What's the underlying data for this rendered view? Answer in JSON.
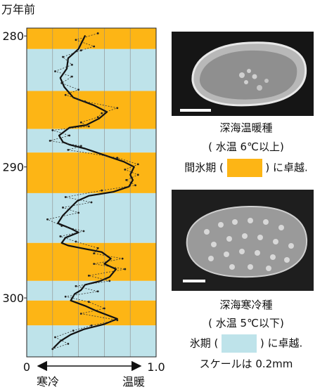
{
  "chart_data": {
    "type": "line",
    "y_axis_title": "万年前",
    "y_ticks": [
      280,
      290,
      300
    ],
    "ylim": [
      279.4,
      304.5
    ],
    "xlim": [
      0,
      1.0
    ],
    "x_tick_labels": [
      "0",
      "1.0"
    ],
    "x_axis_left_label": "寒冷",
    "x_axis_right_label": "温暖",
    "colors": {
      "interglacial": "#FDB515",
      "glacial": "#BEE3EA",
      "smooth_line": "#111111",
      "raw_line": "#333333"
    },
    "bands": [
      {
        "type": "interglacial",
        "from": 279.4,
        "to": 281.0
      },
      {
        "type": "glacial",
        "from": 281.0,
        "to": 284.2
      },
      {
        "type": "interglacial",
        "from": 284.2,
        "to": 287.1
      },
      {
        "type": "glacial",
        "from": 287.1,
        "to": 288.9
      },
      {
        "type": "interglacial",
        "from": 288.9,
        "to": 292.0
      },
      {
        "type": "glacial",
        "from": 292.0,
        "to": 295.8
      },
      {
        "type": "interglacial",
        "from": 295.8,
        "to": 298.7
      },
      {
        "type": "glacial",
        "from": 298.7,
        "to": 300.2
      },
      {
        "type": "interglacial",
        "from": 300.2,
        "to": 302.1
      },
      {
        "type": "glacial",
        "from": 302.1,
        "to": 304.5
      }
    ],
    "series": [
      {
        "style": "smooth",
        "points": [
          [
            0.45,
            280.0
          ],
          [
            0.4,
            281.0
          ],
          [
            0.32,
            281.7
          ],
          [
            0.31,
            282.5
          ],
          [
            0.26,
            283.2
          ],
          [
            0.29,
            283.9
          ],
          [
            0.36,
            284.7
          ],
          [
            0.52,
            285.3
          ],
          [
            0.62,
            285.8
          ],
          [
            0.56,
            286.3
          ],
          [
            0.46,
            286.8
          ],
          [
            0.33,
            287.0
          ],
          [
            0.25,
            287.6
          ],
          [
            0.28,
            288.1
          ],
          [
            0.33,
            288.3
          ],
          [
            0.45,
            288.6
          ],
          [
            0.63,
            289.2
          ],
          [
            0.75,
            289.6
          ],
          [
            0.83,
            290.0
          ],
          [
            0.8,
            290.6
          ],
          [
            0.82,
            291.0
          ],
          [
            0.79,
            291.5
          ],
          [
            0.67,
            291.9
          ],
          [
            0.48,
            292.2
          ],
          [
            0.39,
            292.6
          ],
          [
            0.34,
            293.1
          ],
          [
            0.28,
            293.7
          ],
          [
            0.24,
            294.3
          ],
          [
            0.34,
            294.7
          ],
          [
            0.4,
            295.0
          ],
          [
            0.3,
            295.4
          ],
          [
            0.27,
            295.8
          ],
          [
            0.32,
            296.0
          ],
          [
            0.42,
            296.2
          ],
          [
            0.58,
            296.5
          ],
          [
            0.65,
            297.0
          ],
          [
            0.6,
            297.4
          ],
          [
            0.69,
            297.8
          ],
          [
            0.64,
            298.4
          ],
          [
            0.57,
            298.7
          ],
          [
            0.45,
            299.0
          ],
          [
            0.42,
            299.4
          ],
          [
            0.37,
            299.7
          ],
          [
            0.34,
            300.2
          ],
          [
            0.45,
            300.6
          ],
          [
            0.54,
            301.0
          ],
          [
            0.7,
            301.6
          ],
          [
            0.6,
            302.0
          ],
          [
            0.44,
            302.4
          ],
          [
            0.34,
            302.8
          ],
          [
            0.26,
            303.3
          ],
          [
            0.21,
            303.8
          ]
        ]
      },
      {
        "style": "raw",
        "points": [
          [
            0.55,
            279.8
          ],
          [
            0.38,
            280.3
          ],
          [
            0.52,
            280.8
          ],
          [
            0.42,
            281.1
          ],
          [
            0.28,
            281.6
          ],
          [
            0.35,
            282.2
          ],
          [
            0.22,
            282.7
          ],
          [
            0.35,
            283.1
          ],
          [
            0.27,
            283.6
          ],
          [
            0.4,
            284.1
          ],
          [
            0.3,
            284.5
          ],
          [
            0.45,
            285.0
          ],
          [
            0.7,
            285.5
          ],
          [
            0.58,
            285.9
          ],
          [
            0.55,
            286.2
          ],
          [
            0.42,
            286.6
          ],
          [
            0.48,
            286.9
          ],
          [
            0.2,
            287.2
          ],
          [
            0.33,
            287.6
          ],
          [
            0.18,
            288.0
          ],
          [
            0.42,
            288.4
          ],
          [
            0.32,
            288.7
          ],
          [
            0.7,
            289.3
          ],
          [
            0.86,
            289.8
          ],
          [
            0.76,
            290.2
          ],
          [
            0.86,
            290.6
          ],
          [
            0.77,
            291.0
          ],
          [
            0.84,
            291.4
          ],
          [
            0.58,
            291.8
          ],
          [
            0.3,
            292.3
          ],
          [
            0.5,
            292.7
          ],
          [
            0.28,
            293.1
          ],
          [
            0.4,
            293.5
          ],
          [
            0.16,
            294.0
          ],
          [
            0.27,
            294.5
          ],
          [
            0.44,
            294.9
          ],
          [
            0.26,
            295.3
          ],
          [
            0.38,
            295.7
          ],
          [
            0.55,
            296.2
          ],
          [
            0.52,
            296.6
          ],
          [
            0.74,
            297.0
          ],
          [
            0.52,
            297.4
          ],
          [
            0.76,
            297.8
          ],
          [
            0.48,
            298.3
          ],
          [
            0.64,
            298.7
          ],
          [
            0.38,
            299.1
          ],
          [
            0.55,
            299.5
          ],
          [
            0.3,
            299.9
          ],
          [
            0.48,
            300.3
          ],
          [
            0.6,
            300.8
          ],
          [
            0.42,
            301.2
          ],
          [
            0.7,
            301.7
          ],
          [
            0.5,
            302.1
          ],
          [
            0.36,
            302.5
          ],
          [
            0.22,
            303.0
          ],
          [
            0.32,
            303.5
          ],
          [
            0.2,
            303.9
          ]
        ]
      }
    ]
  },
  "photos": {
    "warm_caption_title": "深海温暖種",
    "warm_caption_temp": "( 水温 6℃以上)",
    "warm_caption_period_prefix": "間氷期 (",
    "warm_caption_period_suffix": ") に卓越.",
    "cold_caption_title": "深海寒冷種",
    "cold_caption_temp": "( 水温 5℃以下)",
    "cold_caption_period_prefix": "氷期 (",
    "cold_caption_period_suffix": ") に卓越.",
    "scale_note": "スケールは 0.2mm"
  }
}
